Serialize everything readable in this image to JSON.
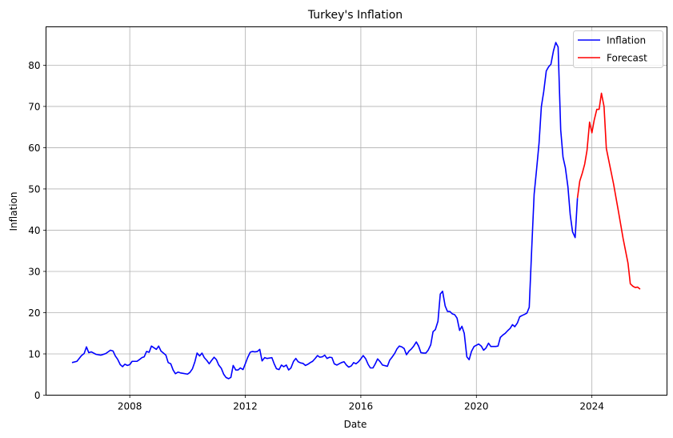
{
  "chart_data": {
    "type": "line",
    "title": "Turkey's Inflation",
    "xlabel": "Date",
    "ylabel": "Inflation",
    "xlim": [
      2005.1,
      2026.6
    ],
    "ylim": [
      0,
      89.3
    ],
    "x_ticks": [
      2008,
      2012,
      2016,
      2020,
      2024
    ],
    "y_ticks": [
      0,
      10,
      20,
      30,
      40,
      50,
      60,
      70,
      80
    ],
    "grid": true,
    "legend_position": "top-right",
    "series": [
      {
        "name": "Inflation",
        "color": "#0000ff",
        "points": [
          [
            2006.0,
            7.9
          ],
          [
            2006.17,
            8.2
          ],
          [
            2006.33,
            9.6
          ],
          [
            2006.42,
            10.1
          ],
          [
            2006.5,
            11.7
          ],
          [
            2006.58,
            10.3
          ],
          [
            2006.67,
            10.5
          ],
          [
            2006.83,
            9.9
          ],
          [
            2007.0,
            9.7
          ],
          [
            2007.17,
            10.1
          ],
          [
            2007.33,
            10.9
          ],
          [
            2007.42,
            10.7
          ],
          [
            2007.5,
            9.5
          ],
          [
            2007.58,
            8.7
          ],
          [
            2007.67,
            7.4
          ],
          [
            2007.75,
            6.9
          ],
          [
            2007.83,
            7.5
          ],
          [
            2007.92,
            7.2
          ],
          [
            2008.0,
            7.4
          ],
          [
            2008.08,
            8.2
          ],
          [
            2008.25,
            8.2
          ],
          [
            2008.33,
            8.6
          ],
          [
            2008.42,
            9.1
          ],
          [
            2008.5,
            9.3
          ],
          [
            2008.58,
            10.6
          ],
          [
            2008.67,
            10.4
          ],
          [
            2008.75,
            11.9
          ],
          [
            2008.92,
            11.1
          ],
          [
            2009.0,
            11.9
          ],
          [
            2009.08,
            10.7
          ],
          [
            2009.25,
            9.7
          ],
          [
            2009.33,
            7.9
          ],
          [
            2009.42,
            7.6
          ],
          [
            2009.5,
            6.1
          ],
          [
            2009.58,
            5.2
          ],
          [
            2009.67,
            5.6
          ],
          [
            2009.75,
            5.4
          ],
          [
            2009.83,
            5.3
          ],
          [
            2010.0,
            5.1
          ],
          [
            2010.08,
            5.5
          ],
          [
            2010.17,
            6.4
          ],
          [
            2010.25,
            8.0
          ],
          [
            2010.33,
            10.2
          ],
          [
            2010.42,
            9.5
          ],
          [
            2010.5,
            10.2
          ],
          [
            2010.58,
            9.1
          ],
          [
            2010.67,
            8.4
          ],
          [
            2010.75,
            7.6
          ],
          [
            2010.83,
            8.4
          ],
          [
            2010.92,
            9.2
          ],
          [
            2011.0,
            8.6
          ],
          [
            2011.08,
            7.3
          ],
          [
            2011.17,
            6.5
          ],
          [
            2011.25,
            5.1
          ],
          [
            2011.33,
            4.3
          ],
          [
            2011.42,
            4.0
          ],
          [
            2011.5,
            4.3
          ],
          [
            2011.58,
            7.2
          ],
          [
            2011.67,
            6.1
          ],
          [
            2011.75,
            6.1
          ],
          [
            2011.83,
            6.6
          ],
          [
            2011.92,
            6.2
          ],
          [
            2012.0,
            7.6
          ],
          [
            2012.08,
            9.1
          ],
          [
            2012.17,
            10.4
          ],
          [
            2012.25,
            10.6
          ],
          [
            2012.33,
            10.5
          ],
          [
            2012.42,
            10.6
          ],
          [
            2012.5,
            11.1
          ],
          [
            2012.58,
            8.3
          ],
          [
            2012.67,
            9.1
          ],
          [
            2012.75,
            8.9
          ],
          [
            2012.92,
            9.1
          ],
          [
            2013.0,
            7.6
          ],
          [
            2013.08,
            6.4
          ],
          [
            2013.17,
            6.2
          ],
          [
            2013.25,
            7.3
          ],
          [
            2013.33,
            6.9
          ],
          [
            2013.42,
            7.3
          ],
          [
            2013.5,
            6.1
          ],
          [
            2013.58,
            6.6
          ],
          [
            2013.67,
            8.2
          ],
          [
            2013.75,
            8.9
          ],
          [
            2013.83,
            8.1
          ],
          [
            2013.92,
            7.8
          ],
          [
            2014.0,
            7.7
          ],
          [
            2014.08,
            7.2
          ],
          [
            2014.17,
            7.5
          ],
          [
            2014.25,
            7.9
          ],
          [
            2014.33,
            8.2
          ],
          [
            2014.42,
            8.9
          ],
          [
            2014.5,
            9.6
          ],
          [
            2014.58,
            9.2
          ],
          [
            2014.67,
            9.3
          ],
          [
            2014.75,
            9.7
          ],
          [
            2014.83,
            8.9
          ],
          [
            2014.92,
            9.2
          ],
          [
            2015.0,
            9.1
          ],
          [
            2015.08,
            7.6
          ],
          [
            2015.17,
            7.3
          ],
          [
            2015.25,
            7.6
          ],
          [
            2015.33,
            7.9
          ],
          [
            2015.42,
            8.1
          ],
          [
            2015.5,
            7.3
          ],
          [
            2015.58,
            6.8
          ],
          [
            2015.67,
            7.1
          ],
          [
            2015.75,
            7.9
          ],
          [
            2015.83,
            7.6
          ],
          [
            2015.92,
            8.1
          ],
          [
            2016.0,
            8.8
          ],
          [
            2016.08,
            9.6
          ],
          [
            2016.17,
            8.8
          ],
          [
            2016.25,
            7.5
          ],
          [
            2016.33,
            6.6
          ],
          [
            2016.42,
            6.6
          ],
          [
            2016.5,
            7.6
          ],
          [
            2016.58,
            8.8
          ],
          [
            2016.67,
            8.1
          ],
          [
            2016.75,
            7.3
          ],
          [
            2016.92,
            7.0
          ],
          [
            2017.0,
            8.5
          ],
          [
            2017.08,
            9.2
          ],
          [
            2017.17,
            10.1
          ],
          [
            2017.25,
            11.2
          ],
          [
            2017.33,
            11.9
          ],
          [
            2017.42,
            11.7
          ],
          [
            2017.5,
            11.3
          ],
          [
            2017.58,
            9.8
          ],
          [
            2017.67,
            10.7
          ],
          [
            2017.75,
            11.2
          ],
          [
            2017.83,
            11.9
          ],
          [
            2017.92,
            12.9
          ],
          [
            2018.0,
            11.9
          ],
          [
            2018.08,
            10.3
          ],
          [
            2018.17,
            10.2
          ],
          [
            2018.25,
            10.2
          ],
          [
            2018.33,
            10.9
          ],
          [
            2018.42,
            12.2
          ],
          [
            2018.5,
            15.4
          ],
          [
            2018.58,
            15.9
          ],
          [
            2018.67,
            17.9
          ],
          [
            2018.75,
            24.5
          ],
          [
            2018.83,
            25.2
          ],
          [
            2018.92,
            21.6
          ],
          [
            2019.0,
            20.3
          ],
          [
            2019.08,
            20.3
          ],
          [
            2019.17,
            19.7
          ],
          [
            2019.25,
            19.5
          ],
          [
            2019.33,
            18.7
          ],
          [
            2019.42,
            15.7
          ],
          [
            2019.5,
            16.7
          ],
          [
            2019.58,
            15.0
          ],
          [
            2019.67,
            9.3
          ],
          [
            2019.75,
            8.6
          ],
          [
            2019.83,
            10.6
          ],
          [
            2019.92,
            11.8
          ],
          [
            2020.0,
            12.1
          ],
          [
            2020.08,
            12.4
          ],
          [
            2020.17,
            11.9
          ],
          [
            2020.25,
            10.9
          ],
          [
            2020.33,
            11.4
          ],
          [
            2020.42,
            12.6
          ],
          [
            2020.5,
            11.8
          ],
          [
            2020.58,
            11.8
          ],
          [
            2020.67,
            11.8
          ],
          [
            2020.75,
            11.9
          ],
          [
            2020.83,
            14.0
          ],
          [
            2020.92,
            14.6
          ],
          [
            2021.0,
            15.0
          ],
          [
            2021.08,
            15.6
          ],
          [
            2021.17,
            16.2
          ],
          [
            2021.25,
            17.1
          ],
          [
            2021.33,
            16.6
          ],
          [
            2021.42,
            17.5
          ],
          [
            2021.5,
            19.0
          ],
          [
            2021.58,
            19.3
          ],
          [
            2021.67,
            19.6
          ],
          [
            2021.75,
            19.9
          ],
          [
            2021.83,
            21.3
          ],
          [
            2021.92,
            36.1
          ],
          [
            2022.0,
            48.7
          ],
          [
            2022.08,
            54.4
          ],
          [
            2022.17,
            61.1
          ],
          [
            2022.25,
            69.97
          ],
          [
            2022.33,
            73.5
          ],
          [
            2022.42,
            78.6
          ],
          [
            2022.5,
            79.6
          ],
          [
            2022.58,
            80.2
          ],
          [
            2022.67,
            83.5
          ],
          [
            2022.75,
            85.5
          ],
          [
            2022.83,
            84.4
          ],
          [
            2022.92,
            64.3
          ],
          [
            2023.0,
            57.7
          ],
          [
            2023.08,
            55.2
          ],
          [
            2023.17,
            50.5
          ],
          [
            2023.25,
            43.7
          ],
          [
            2023.33,
            39.6
          ],
          [
            2023.42,
            38.2
          ],
          [
            2023.5,
            47.8
          ]
        ]
      },
      {
        "name": "Forecast",
        "color": "#ff0000",
        "points": [
          [
            2023.5,
            47.8
          ],
          [
            2023.58,
            51.9
          ],
          [
            2023.67,
            53.9
          ],
          [
            2023.75,
            56.0
          ],
          [
            2023.83,
            59.3
          ],
          [
            2023.92,
            66.2
          ],
          [
            2024.0,
            63.6
          ],
          [
            2024.08,
            66.7
          ],
          [
            2024.17,
            69.3
          ],
          [
            2024.25,
            69.3
          ],
          [
            2024.33,
            73.2
          ],
          [
            2024.42,
            70.0
          ],
          [
            2024.5,
            59.8
          ],
          [
            2024.75,
            51.2
          ],
          [
            2024.92,
            44.5
          ],
          [
            2025.08,
            38.0
          ],
          [
            2025.25,
            32.0
          ],
          [
            2025.33,
            27.0
          ],
          [
            2025.42,
            26.4
          ],
          [
            2025.5,
            26.1
          ],
          [
            2025.58,
            26.2
          ],
          [
            2025.67,
            25.7
          ]
        ]
      }
    ]
  }
}
